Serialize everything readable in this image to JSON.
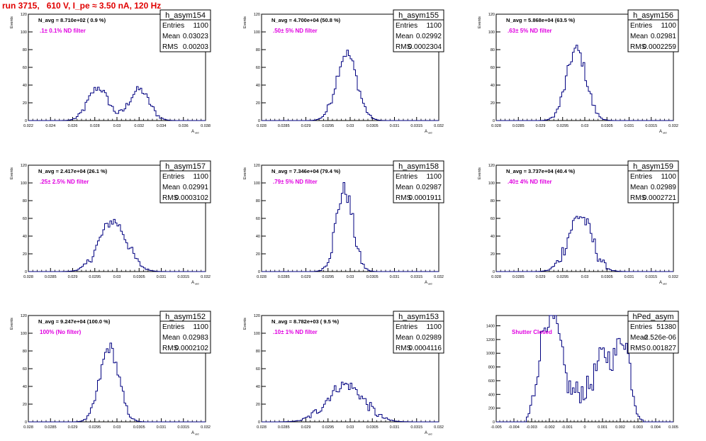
{
  "title": "run 3715,   610 V, I_pe ≈ 3.50 nA, 120 Hz",
  "colors": {
    "histogram": "#000080",
    "note": "#e000e0",
    "title": "#e00000",
    "axis": "#000000"
  },
  "chart_data": [
    {
      "type": "histogram",
      "name": "h_asym154",
      "title": "N_avg = 8.710e+02 ( 0.9 %)",
      "note": ".1± 0.1% ND filter",
      "xlabel": "A_uid",
      "ylabel": "Events",
      "xlim": [
        0.022,
        0.038
      ],
      "ylim": [
        0,
        120
      ],
      "xticks": [
        0.022,
        0.024,
        0.026,
        0.028,
        0.03,
        0.032,
        0.034,
        0.036,
        0.038
      ],
      "xtick_labels": [
        "0.022",
        "0.024",
        "0.026",
        "0.028",
        "0.03",
        "0.032",
        "0.034",
        "0.036",
        "0.038"
      ],
      "yticks": [
        0,
        20,
        40,
        60,
        80,
        100,
        120
      ],
      "ytick_labels": [
        "0",
        "20",
        "40",
        "60",
        "80",
        "100",
        "120"
      ],
      "stats": [
        [
          "Entries",
          "1100"
        ],
        [
          "Mean",
          "0.03023"
        ],
        [
          "RMS",
          "0.00203"
        ]
      ],
      "peaks": [
        {
          "mu": 0.0283,
          "sigma": 0.0009,
          "a": 37
        },
        {
          "mu": 0.032,
          "sigma": 0.0009,
          "a": 35
        }
      ],
      "noise": 4
    },
    {
      "type": "histogram",
      "name": "h_asym155",
      "title": "N_avg = 4.700e+04 (50.8 %)",
      "note": ".50± 5% ND filter",
      "xlabel": "A_uid",
      "ylabel": "Events",
      "xlim": [
        0.028,
        0.032
      ],
      "ylim": [
        0,
        120
      ],
      "xticks": [
        0.028,
        0.0285,
        0.029,
        0.0295,
        0.03,
        0.0305,
        0.031,
        0.0315,
        0.032
      ],
      "xtick_labels": [
        "0.028",
        "0.0285",
        "0.029",
        "0.0295",
        "0.03",
        "0.0305",
        "0.031",
        "0.0315",
        "0.032"
      ],
      "yticks": [
        0,
        20,
        40,
        60,
        80,
        100,
        120
      ],
      "ytick_labels": [
        "0",
        "20",
        "40",
        "60",
        "80",
        "100",
        "120"
      ],
      "stats": [
        [
          "Entries",
          "1100"
        ],
        [
          "Mean",
          "0.02992"
        ],
        [
          "RMS",
          "0.0002304"
        ]
      ],
      "peaks": [
        {
          "mu": 0.02992,
          "sigma": 0.00023,
          "a": 76
        }
      ],
      "noise": 6
    },
    {
      "type": "histogram",
      "name": "h_asym156",
      "title": "N_avg = 5.868e+04 (63.5 %)",
      "note": ".63± 5% ND filter",
      "xlabel": "A_uid",
      "ylabel": "Events",
      "xlim": [
        0.028,
        0.032
      ],
      "ylim": [
        0,
        120
      ],
      "xticks": [
        0.028,
        0.0285,
        0.029,
        0.0295,
        0.03,
        0.0305,
        0.031,
        0.0315,
        0.032
      ],
      "xtick_labels": [
        "0.028",
        "0.0285",
        "0.029",
        "0.0295",
        "0.03",
        "0.0305",
        "0.031",
        "0.0315",
        "0.032"
      ],
      "yticks": [
        0,
        20,
        40,
        60,
        80,
        100,
        120
      ],
      "ytick_labels": [
        "0",
        "20",
        "40",
        "60",
        "80",
        "100",
        "120"
      ],
      "stats": [
        [
          "Entries",
          "1100"
        ],
        [
          "Mean",
          "0.02981"
        ],
        [
          "RMS",
          "0.0002259"
        ]
      ],
      "peaks": [
        {
          "mu": 0.02981,
          "sigma": 0.00022,
          "a": 80
        }
      ],
      "noise": 7
    },
    {
      "type": "histogram",
      "name": "h_asym157",
      "title": "N_avg = 2.417e+04 (26.1 %)",
      "note": ".25± 2.5% ND filter",
      "xlabel": "A_uid",
      "ylabel": "Events",
      "xlim": [
        0.028,
        0.032
      ],
      "ylim": [
        0,
        120
      ],
      "xticks": [
        0.028,
        0.0285,
        0.029,
        0.0295,
        0.03,
        0.0305,
        0.031,
        0.0315,
        0.032
      ],
      "xtick_labels": [
        "0.028",
        "0.0285",
        "0.029",
        "0.0295",
        "0.03",
        "0.0305",
        "0.031",
        "0.0315",
        "0.032"
      ],
      "yticks": [
        0,
        20,
        40,
        60,
        80,
        100,
        120
      ],
      "ytick_labels": [
        "0",
        "20",
        "40",
        "60",
        "80",
        "100",
        "120"
      ],
      "stats": [
        [
          "Entries",
          "1100"
        ],
        [
          "Mean",
          "0.02991"
        ],
        [
          "RMS",
          "0.0003102"
        ]
      ],
      "peaks": [
        {
          "mu": 0.02991,
          "sigma": 0.00031,
          "a": 57
        }
      ],
      "noise": 6
    },
    {
      "type": "histogram",
      "name": "h_asym158",
      "title": "N_avg = 7.346e+04 (79.4 %)",
      "note": ".79± 5% ND filter",
      "xlabel": "A_uid",
      "ylabel": "Events",
      "xlim": [
        0.028,
        0.032
      ],
      "ylim": [
        0,
        120
      ],
      "xticks": [
        0.028,
        0.0285,
        0.029,
        0.0295,
        0.03,
        0.0305,
        0.031,
        0.0315,
        0.032
      ],
      "xtick_labels": [
        "0.028",
        "0.0285",
        "0.029",
        "0.0295",
        "0.03",
        "0.0305",
        "0.031",
        "0.0315",
        "0.032"
      ],
      "yticks": [
        0,
        20,
        40,
        60,
        80,
        100,
        120
      ],
      "ytick_labels": [
        "0",
        "20",
        "40",
        "60",
        "80",
        "100",
        "120"
      ],
      "stats": [
        [
          "Entries",
          "1100"
        ],
        [
          "Mean",
          "0.02987"
        ],
        [
          "RMS",
          "0.0001911"
        ]
      ],
      "peaks": [
        {
          "mu": 0.02987,
          "sigma": 0.00019,
          "a": 92
        }
      ],
      "noise": 10
    },
    {
      "type": "histogram",
      "name": "h_asym159",
      "title": "N_avg = 3.737e+04 (40.4 %)",
      "note": ".40± 4% ND filter",
      "xlabel": "A_uid",
      "ylabel": "Events",
      "xlim": [
        0.028,
        0.032
      ],
      "ylim": [
        0,
        120
      ],
      "xticks": [
        0.028,
        0.0285,
        0.029,
        0.0295,
        0.03,
        0.0305,
        0.031,
        0.0315,
        0.032
      ],
      "xtick_labels": [
        "0.028",
        "0.0285",
        "0.029",
        "0.0295",
        "0.03",
        "0.0305",
        "0.031",
        "0.0315",
        "0.032"
      ],
      "yticks": [
        0,
        20,
        40,
        60,
        80,
        100,
        120
      ],
      "ytick_labels": [
        "0",
        "20",
        "40",
        "60",
        "80",
        "100",
        "120"
      ],
      "stats": [
        [
          "Entries",
          "1100"
        ],
        [
          "Mean",
          "0.02989"
        ],
        [
          "RMS",
          "0.0002721"
        ]
      ],
      "peaks": [
        {
          "mu": 0.02989,
          "sigma": 0.00027,
          "a": 63
        }
      ],
      "noise": 9
    },
    {
      "type": "histogram",
      "name": "h_asym152",
      "title": "N_avg = 9.247e+04 (100.0 %)",
      "note": "100% (No filter)",
      "xlabel": "A_uid",
      "ylabel": "Events",
      "xlim": [
        0.028,
        0.032
      ],
      "ylim": [
        0,
        120
      ],
      "xticks": [
        0.028,
        0.0285,
        0.029,
        0.0295,
        0.03,
        0.0305,
        0.031,
        0.0315,
        0.032
      ],
      "xtick_labels": [
        "0.028",
        "0.0285",
        "0.029",
        "0.0295",
        "0.03",
        "0.0305",
        "0.031",
        "0.0315",
        "0.032"
      ],
      "yticks": [
        0,
        20,
        40,
        60,
        80,
        100,
        120
      ],
      "ytick_labels": [
        "0",
        "20",
        "40",
        "60",
        "80",
        "100",
        "120"
      ],
      "stats": [
        [
          "Entries",
          "1100"
        ],
        [
          "Mean",
          "0.02983"
        ],
        [
          "RMS",
          "0.0002102"
        ]
      ],
      "peaks": [
        {
          "mu": 0.02983,
          "sigma": 0.00021,
          "a": 84
        }
      ],
      "noise": 7
    },
    {
      "type": "histogram",
      "name": "h_asym153",
      "title": "N_avg = 8.782e+03 ( 9.5 %)",
      "note": ".10± 1% ND filter",
      "xlabel": "A_uid",
      "ylabel": "Events",
      "xlim": [
        0.028,
        0.032
      ],
      "ylim": [
        0,
        120
      ],
      "xticks": [
        0.028,
        0.0285,
        0.029,
        0.0295,
        0.03,
        0.0305,
        0.031,
        0.0315,
        0.032
      ],
      "xtick_labels": [
        "0.028",
        "0.0285",
        "0.029",
        "0.0295",
        "0.03",
        "0.0305",
        "0.031",
        "0.0315",
        "0.032"
      ],
      "yticks": [
        0,
        20,
        40,
        60,
        80,
        100,
        120
      ],
      "ytick_labels": [
        "0",
        "20",
        "40",
        "60",
        "80",
        "100",
        "120"
      ],
      "stats": [
        [
          "Entries",
          "1100"
        ],
        [
          "Mean",
          "0.02989"
        ],
        [
          "RMS",
          "0.0004116"
        ]
      ],
      "peaks": [
        {
          "mu": 0.02989,
          "sigma": 0.00041,
          "a": 42
        }
      ],
      "noise": 6
    },
    {
      "type": "histogram",
      "name": "hPed_asym",
      "title": "",
      "note": "Shutter Closed",
      "xlabel": "",
      "ylabel": "",
      "xlim": [
        -0.005,
        0.005
      ],
      "ylim": [
        0,
        1550
      ],
      "xticks": [
        -0.005,
        -0.004,
        -0.003,
        -0.002,
        -0.001,
        0,
        0.001,
        0.002,
        0.003,
        0.004,
        0.005
      ],
      "xtick_labels": [
        "-0.005",
        "-0.004",
        "-0.003",
        "-0.002",
        "-0.001",
        "0",
        "0.001",
        "0.002",
        "0.003",
        "0.004",
        "0.005"
      ],
      "yticks": [
        0,
        200,
        400,
        600,
        800,
        1000,
        1200,
        1400
      ],
      "ytick_labels": [
        "0",
        "200",
        "400",
        "600",
        "800",
        "1000",
        "1200",
        "1400"
      ],
      "stats": [
        [
          "Entries",
          "51380"
        ],
        [
          "Mean",
          "-2.526e-06"
        ],
        [
          "RMS",
          "0.001827"
        ]
      ],
      "peaks": [
        {
          "mu": -0.0023,
          "sigma": 0.0004,
          "a": 1150
        },
        {
          "mu": -0.0016,
          "sigma": 0.0004,
          "a": 1050
        },
        {
          "mu": -0.0003,
          "sigma": 0.0007,
          "a": 420
        },
        {
          "mu": 0.0011,
          "sigma": 0.0005,
          "a": 900
        },
        {
          "mu": 0.0022,
          "sigma": 0.0004,
          "a": 1150
        }
      ],
      "noise": 180,
      "range": [
        -0.0033,
        0.0033
      ]
    }
  ]
}
